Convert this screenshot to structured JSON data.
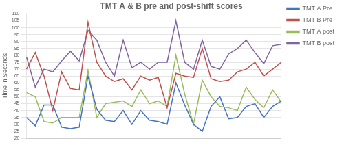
{
  "chart_data": {
    "type": "line",
    "title": "TMT A & B pre and post-shift scores",
    "y_label": "Time in Seconds",
    "categories": [
      null,
      null,
      null,
      null,
      null,
      null,
      null,
      null,
      null,
      null,
      null,
      null,
      null,
      null,
      null,
      null,
      null,
      null,
      null,
      null,
      null,
      null,
      null,
      null,
      null,
      null,
      null,
      null,
      null,
      null
    ],
    "series": [
      {
        "name": "TMT A Pre",
        "color": "#4472C4",
        "values": [
          35,
          29,
          44,
          44,
          28,
          27,
          28,
          65,
          41,
          33,
          32,
          40,
          30,
          40,
          33,
          32,
          30,
          60,
          44,
          30,
          25,
          43,
          50,
          34,
          35,
          43,
          45,
          35,
          43,
          47
        ]
      },
      {
        "name": "TMT B Pre",
        "color": "#C0504D",
        "values": [
          70,
          82,
          65,
          40,
          68,
          56,
          55,
          104,
          75,
          65,
          61,
          63,
          55,
          65,
          62,
          64,
          42,
          67,
          65,
          64,
          85,
          63,
          61,
          62,
          68,
          70,
          75,
          65,
          70,
          75
        ]
      },
      {
        "name": "TMT A post",
        "color": "#9BBB59",
        "values": [
          53,
          50,
          32,
          31,
          35,
          35,
          35,
          69,
          35,
          45,
          46,
          47,
          43,
          55,
          45,
          47,
          43,
          80,
          52,
          30,
          62,
          50,
          43,
          42,
          40,
          57,
          48,
          42,
          55,
          46
        ]
      },
      {
        "name": "TMT B post",
        "color": "#8064A2",
        "values": [
          79,
          57,
          70,
          68,
          76,
          83,
          76,
          98,
          91,
          75,
          65,
          91,
          71,
          75,
          70,
          75,
          75,
          105,
          75,
          70,
          91,
          72,
          70,
          81,
          85,
          91,
          82,
          74,
          87,
          88
        ]
      }
    ],
    "ylim": [
      20,
      110
    ],
    "yticks": [
      20,
      25,
      30,
      35,
      40,
      45,
      50,
      55,
      60,
      65,
      70,
      75,
      80,
      85,
      90,
      95,
      100,
      105,
      110
    ],
    "grid": true,
    "legend": "right",
    "tick_labels": "y"
  }
}
